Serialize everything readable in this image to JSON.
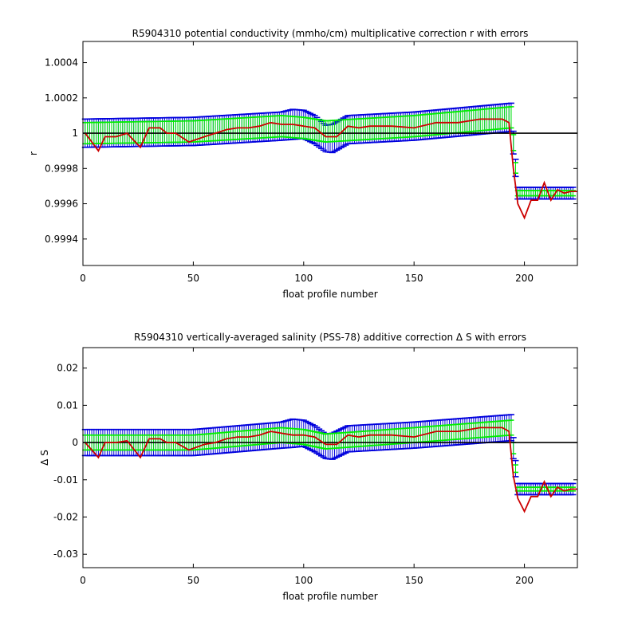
{
  "chart_data": [
    {
      "type": "line",
      "title": "R5904310 potential conductivity (mmho/cm) multiplicative correction r with errors",
      "xlabel": "float profile number",
      "ylabel": "r",
      "xlim": [
        0,
        224
      ],
      "ylim": [
        0.99925,
        1.00052
      ],
      "xticks": [
        0,
        50,
        100,
        150,
        200
      ],
      "xtick_labels": [
        "0",
        "50",
        "100",
        "150",
        "200"
      ],
      "yticks": [
        0.9994,
        0.9996,
        0.9998,
        1.0,
        1.0002,
        1.0004
      ],
      "ytick_labels": [
        "0.9994",
        "0.9996",
        "0.9998",
        "1",
        "1.0002",
        "1.0004"
      ],
      "reference_line": 1.0,
      "grid": false,
      "colors": {
        "red_series": "#cc0000",
        "green_band": "#00ee00",
        "blue_band": "#0000dd",
        "reference": "#000000"
      },
      "series": [
        {
          "role": "fit",
          "style": "green",
          "x": [
            1,
            50,
            90,
            100,
            110,
            150,
            194,
            197,
            224
          ],
          "y": [
            1.0,
            1.00001,
            1.00004,
            1.00003,
            1.00001,
            1.00004,
            1.00009,
            0.99966,
            0.99966
          ],
          "err": [
            6e-05,
            6e-05,
            6e-05,
            6e-05,
            6e-05,
            6e-05,
            6e-05,
            1.5e-05,
            1.5e-05
          ]
        },
        {
          "role": "fit",
          "style": "blue",
          "x": [
            1,
            50,
            90,
            95,
            100,
            105,
            110,
            113,
            120,
            150,
            194,
            197,
            224
          ],
          "y": [
            1.0,
            1.00001,
            1.00004,
            1.00005,
            1.00005,
            1.00002,
            0.99997,
            0.99997,
            1.00002,
            1.00004,
            1.00009,
            0.99966,
            0.99966
          ],
          "err": [
            8e-05,
            8e-05,
            8e-05,
            8.5e-05,
            8e-05,
            8e-05,
            7.5e-05,
            8e-05,
            8e-05,
            8e-05,
            8e-05,
            3.3e-05,
            3.3e-05
          ]
        },
        {
          "role": "correction",
          "style": "red",
          "x": [
            1,
            4,
            7,
            10,
            15,
            20,
            26,
            30,
            35,
            38,
            42,
            48,
            55,
            60,
            65,
            70,
            75,
            80,
            85,
            90,
            95,
            100,
            105,
            110,
            115,
            120,
            125,
            130,
            140,
            150,
            160,
            170,
            180,
            190,
            193,
            195,
            197,
            200,
            203,
            206,
            209,
            212,
            215,
            218,
            221,
            224
          ],
          "y": [
            1.0,
            0.99995,
            0.9999,
            0.99998,
            0.99998,
            1.0,
            0.99992,
            1.00003,
            1.00003,
            1.0,
            1.0,
            0.99995,
            0.99998,
            1.0,
            1.00002,
            1.00003,
            1.00003,
            1.00004,
            1.00006,
            1.00005,
            1.00005,
            1.00004,
            1.00003,
            0.99998,
            0.99998,
            1.00004,
            1.00003,
            1.00004,
            1.00004,
            1.00003,
            1.00006,
            1.00006,
            1.00008,
            1.00008,
            1.00006,
            0.9998,
            0.9996,
            0.99952,
            0.99962,
            0.99962,
            0.99972,
            0.99962,
            0.99968,
            0.99966,
            0.99967,
            0.99967
          ]
        }
      ]
    },
    {
      "type": "line",
      "title": "R5904310 vertically-averaged salinity (PSS-78) additive correction Δ S with errors",
      "xlabel": "float profile number",
      "ylabel": "Δ S",
      "xlim": [
        0,
        224
      ],
      "ylim": [
        -0.0336,
        0.0255
      ],
      "xticks": [
        0,
        50,
        100,
        150,
        200
      ],
      "xtick_labels": [
        "0",
        "50",
        "100",
        "150",
        "200"
      ],
      "yticks": [
        -0.03,
        -0.02,
        -0.01,
        0,
        0.01,
        0.02
      ],
      "ytick_labels": [
        "-0.03",
        "-0.02",
        "-0.01",
        "0",
        "0.01",
        "0.02"
      ],
      "reference_line": 0,
      "grid": false,
      "colors": {
        "red_series": "#cc0000",
        "green_band": "#00ee00",
        "blue_band": "#0000dd",
        "reference": "#000000"
      },
      "series": [
        {
          "role": "fit",
          "style": "green",
          "x": [
            1,
            50,
            90,
            100,
            110,
            150,
            194,
            197,
            224
          ],
          "y": [
            0.0,
            0.0,
            0.002,
            0.0015,
            0.0003,
            0.002,
            0.004,
            -0.0125,
            -0.0125
          ],
          "err": [
            0.002,
            0.002,
            0.002,
            0.002,
            0.002,
            0.002,
            0.002,
            0.0005,
            0.0005
          ]
        },
        {
          "role": "fit",
          "style": "blue",
          "x": [
            1,
            50,
            90,
            95,
            100,
            105,
            110,
            113,
            120,
            150,
            194,
            197,
            224
          ],
          "y": [
            0.0,
            0.0,
            0.002,
            0.0025,
            0.0025,
            0.001,
            -0.001,
            -0.001,
            0.001,
            0.002,
            0.004,
            -0.0125,
            -0.0125
          ],
          "err": [
            0.0035,
            0.0035,
            0.0035,
            0.0038,
            0.0035,
            0.0035,
            0.0033,
            0.0035,
            0.0035,
            0.0035,
            0.0035,
            0.0015,
            0.0015
          ]
        },
        {
          "role": "correction",
          "style": "red",
          "x": [
            1,
            4,
            7,
            10,
            15,
            20,
            26,
            30,
            35,
            38,
            42,
            48,
            55,
            60,
            65,
            70,
            75,
            80,
            85,
            90,
            95,
            100,
            105,
            110,
            115,
            120,
            125,
            130,
            140,
            150,
            160,
            170,
            180,
            190,
            193,
            195,
            197,
            200,
            203,
            206,
            209,
            212,
            215,
            218,
            221,
            224
          ],
          "y": [
            0.0,
            -0.002,
            -0.004,
            0.0,
            0.0,
            0.0005,
            -0.004,
            0.001,
            0.001,
            0.0,
            0.0,
            -0.002,
            -0.0005,
            0.0,
            0.001,
            0.0015,
            0.0015,
            0.002,
            0.003,
            0.0025,
            0.002,
            0.002,
            0.0015,
            -0.0005,
            -0.0005,
            0.002,
            0.0015,
            0.002,
            0.002,
            0.0015,
            0.003,
            0.003,
            0.004,
            0.004,
            0.003,
            -0.009,
            -0.015,
            -0.0185,
            -0.0145,
            -0.0145,
            -0.0105,
            -0.0145,
            -0.012,
            -0.013,
            -0.0125,
            -0.0125
          ]
        }
      ]
    }
  ]
}
